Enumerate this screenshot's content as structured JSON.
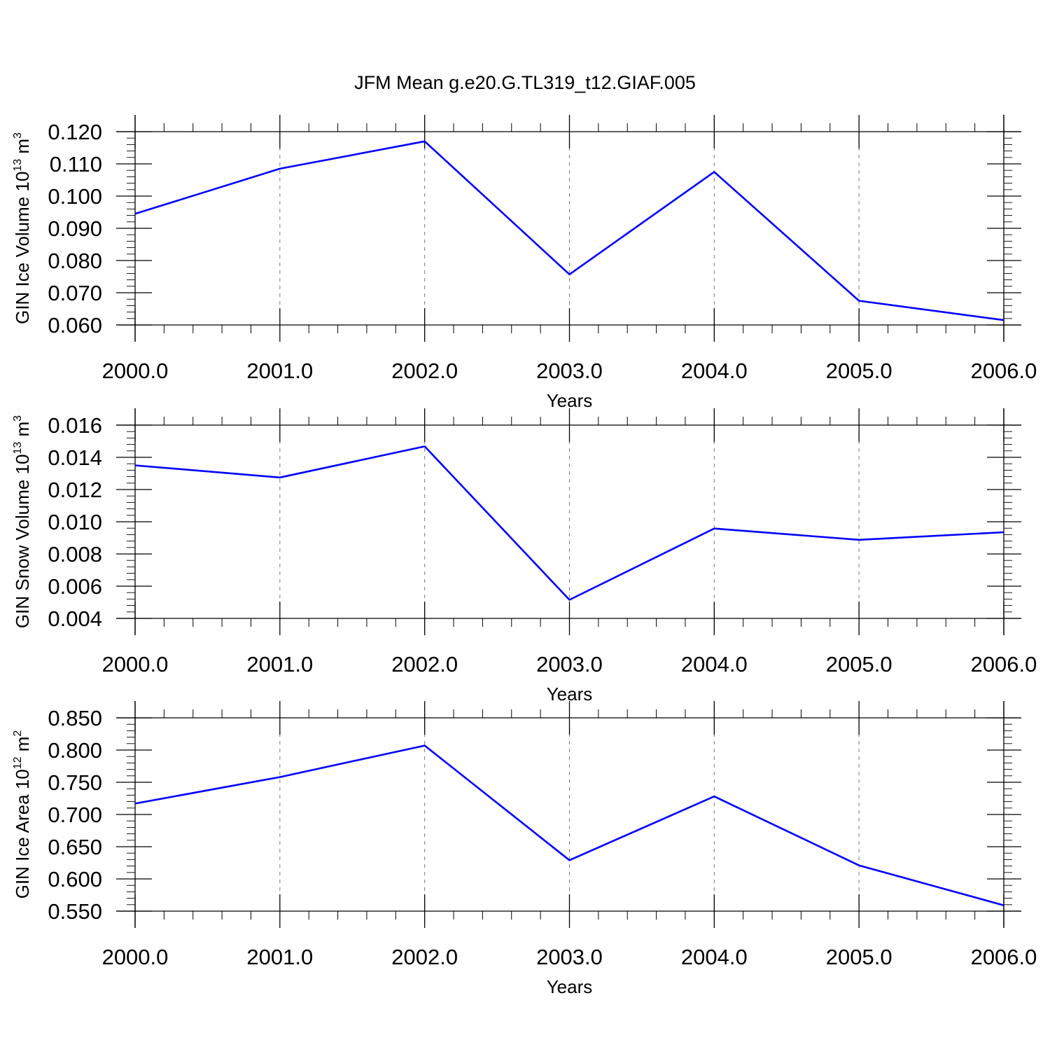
{
  "title": "JFM Mean g.e20.G.TL319_t12.GIAF.005",
  "colors": {
    "series": "#0000ff",
    "axis": "#000000",
    "grid": "#777777",
    "background": "#ffffff"
  },
  "chart_data": [
    {
      "type": "line",
      "xlabel": "Years",
      "ylabel": {
        "text": "GIN Ice Volume 10",
        "exp": "13",
        "unit": " m",
        "unit_exp": "3"
      },
      "x": [
        2000,
        2001,
        2002,
        2003,
        2004,
        2005,
        2006
      ],
      "xlim": [
        2000,
        2006.12
      ],
      "x_ticks": [
        2000,
        2001,
        2002,
        2003,
        2004,
        2005,
        2006
      ],
      "x_tick_labels": [
        "2000.0",
        "2001.0",
        "2002.0",
        "2003.0",
        "2004.0",
        "2005.0",
        "2006.0"
      ],
      "series": [
        {
          "values": [
            0.0945,
            0.1085,
            0.117,
            0.0757,
            0.1075,
            0.0675,
            0.0615
          ]
        }
      ],
      "ylim": [
        0.06,
        0.12
      ],
      "y_ticks": [
        0.06,
        0.07,
        0.08,
        0.09,
        0.1,
        0.11,
        0.12
      ],
      "y_tick_labels": [
        "0.060",
        "0.070",
        "0.080",
        "0.090",
        "0.100",
        "0.110",
        "0.120"
      ],
      "y_minor_step": 0.002,
      "grid": "x-dashed",
      "legend": "none"
    },
    {
      "type": "line",
      "xlabel": "Years",
      "ylabel": {
        "text": "GIN Snow Volume 10",
        "exp": "13",
        "unit": " m",
        "unit_exp": "3"
      },
      "x": [
        2000,
        2001,
        2002,
        2003,
        2004,
        2005,
        2006
      ],
      "xlim": [
        2000,
        2006.12
      ],
      "x_ticks": [
        2000,
        2001,
        2002,
        2003,
        2004,
        2005,
        2006
      ],
      "x_tick_labels": [
        "2000.0",
        "2001.0",
        "2002.0",
        "2003.0",
        "2004.0",
        "2005.0",
        "2006.0"
      ],
      "series": [
        {
          "values": [
            0.0135,
            0.01275,
            0.01468,
            0.00515,
            0.00958,
            0.00888,
            0.00935
          ]
        }
      ],
      "ylim": [
        0.004,
        0.016
      ],
      "y_ticks": [
        0.004,
        0.006,
        0.008,
        0.01,
        0.012,
        0.014,
        0.016
      ],
      "y_tick_labels": [
        "0.004",
        "0.006",
        "0.008",
        "0.010",
        "0.012",
        "0.014",
        "0.016"
      ],
      "y_minor_step": 0.0004,
      "grid": "x-dashed",
      "legend": "none"
    },
    {
      "type": "line",
      "xlabel": "Years",
      "ylabel": {
        "text": "GIN Ice Area 10",
        "exp": "12",
        "unit": " m",
        "unit_exp": "2"
      },
      "x": [
        2000,
        2001,
        2002,
        2003,
        2004,
        2005,
        2006
      ],
      "xlim": [
        2000,
        2006.12
      ],
      "x_ticks": [
        2000,
        2001,
        2002,
        2003,
        2004,
        2005,
        2006
      ],
      "x_tick_labels": [
        "2000.0",
        "2001.0",
        "2002.0",
        "2003.0",
        "2004.0",
        "2005.0",
        "2006.0"
      ],
      "series": [
        {
          "values": [
            0.717,
            0.758,
            0.807,
            0.629,
            0.728,
            0.621,
            0.559
          ]
        }
      ],
      "ylim": [
        0.55,
        0.85
      ],
      "y_ticks": [
        0.55,
        0.6,
        0.65,
        0.7,
        0.75,
        0.8,
        0.85
      ],
      "y_tick_labels": [
        "0.550",
        "0.600",
        "0.650",
        "0.700",
        "0.750",
        "0.800",
        "0.850"
      ],
      "y_minor_step": 0.01,
      "grid": "x-dashed",
      "legend": "none"
    }
  ]
}
